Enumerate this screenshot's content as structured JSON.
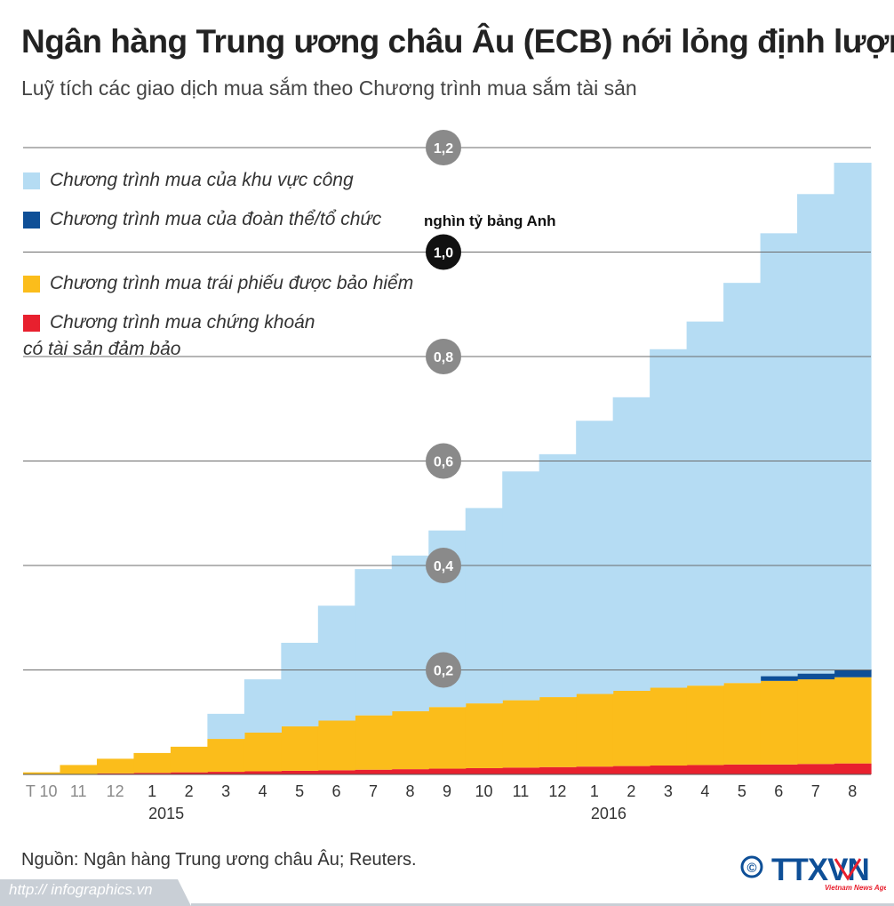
{
  "header": {
    "title": "Ngân hàng Trung ương châu Âu (ECB) nới lỏng định lượng",
    "subtitle": "Luỹ tích các giao dịch mua sắm theo Chương trình mua sắm tài sản"
  },
  "unit_label": "nghìn tỷ bảng Anh",
  "legend": [
    {
      "label": "Chương trình mua của khu vực công",
      "color": "#b5dcf3"
    },
    {
      "label": "Chương trình mua của đoàn thể/tổ chức",
      "color": "#0e4f97"
    },
    {
      "label": "Chương trình mua trái phiếu được bảo hiểm",
      "color": "#fbbd1b"
    },
    {
      "label": "Chương trình mua chứng khoán có tài sản đảm bảo",
      "color": "#e8202e"
    }
  ],
  "chart_data": {
    "type": "area",
    "stacked": true,
    "step": true,
    "x": [
      "T 10",
      "11",
      "12",
      "1",
      "2",
      "3",
      "4",
      "5",
      "6",
      "7",
      "8",
      "9",
      "10",
      "11",
      "12",
      "1",
      "2",
      "3",
      "4",
      "5",
      "6",
      "7",
      "8"
    ],
    "year_labels": [
      {
        "label": "2015",
        "at_index": 3
      },
      {
        "label": "2016",
        "at_index": 15
      }
    ],
    "ylim": [
      0,
      1.22
    ],
    "yticks": [
      "0,2",
      "0,4",
      "0,6",
      "0,8",
      "1,0",
      "1,2"
    ],
    "ytick_values": [
      0.2,
      0.4,
      0.6,
      0.8,
      1.0,
      1.2
    ],
    "highlight_tick": "1,0",
    "grid": true,
    "legend_position": "top-left",
    "series": [
      {
        "name": "Chương trình mua chứng khoán có tài sản đảm bảo",
        "color": "#e8202e",
        "values": [
          0.0,
          0.0,
          0.002,
          0.003,
          0.004,
          0.005,
          0.006,
          0.007,
          0.008,
          0.009,
          0.01,
          0.011,
          0.012,
          0.013,
          0.014,
          0.015,
          0.016,
          0.017,
          0.018,
          0.019,
          0.019,
          0.02,
          0.021
        ]
      },
      {
        "name": "Chương trình mua trái phiếu được bảo hiểm",
        "color": "#fbbd1b",
        "values": [
          0.004,
          0.018,
          0.028,
          0.038,
          0.049,
          0.063,
          0.074,
          0.085,
          0.095,
          0.104,
          0.111,
          0.118,
          0.124,
          0.129,
          0.134,
          0.139,
          0.144,
          0.149,
          0.152,
          0.156,
          0.16,
          0.162,
          0.165
        ]
      },
      {
        "name": "Chương trình mua của đoàn thể/tổ chức",
        "color": "#0e4f97",
        "values": [
          0,
          0,
          0,
          0,
          0,
          0,
          0,
          0,
          0,
          0,
          0,
          0,
          0,
          0,
          0,
          0,
          0,
          0,
          0,
          0,
          0.009,
          0.011,
          0.015
        ]
      },
      {
        "name": "Chương trình mua của khu vực công",
        "color": "#b5dcf3",
        "values": [
          0,
          0,
          0,
          0,
          0,
          0.048,
          0.102,
          0.16,
          0.22,
          0.28,
          0.298,
          0.338,
          0.374,
          0.438,
          0.465,
          0.523,
          0.562,
          0.648,
          0.697,
          0.766,
          0.848,
          0.918,
          0.97
        ]
      }
    ]
  },
  "source": "Nguồn: Ngân hàng Trung ương châu Âu; Reuters.",
  "footer": {
    "url": "http:// infographics.vn",
    "logo_text": "TTXVN",
    "logo_symbol": "©",
    "logo_sub": "Vietnam News Agency"
  }
}
